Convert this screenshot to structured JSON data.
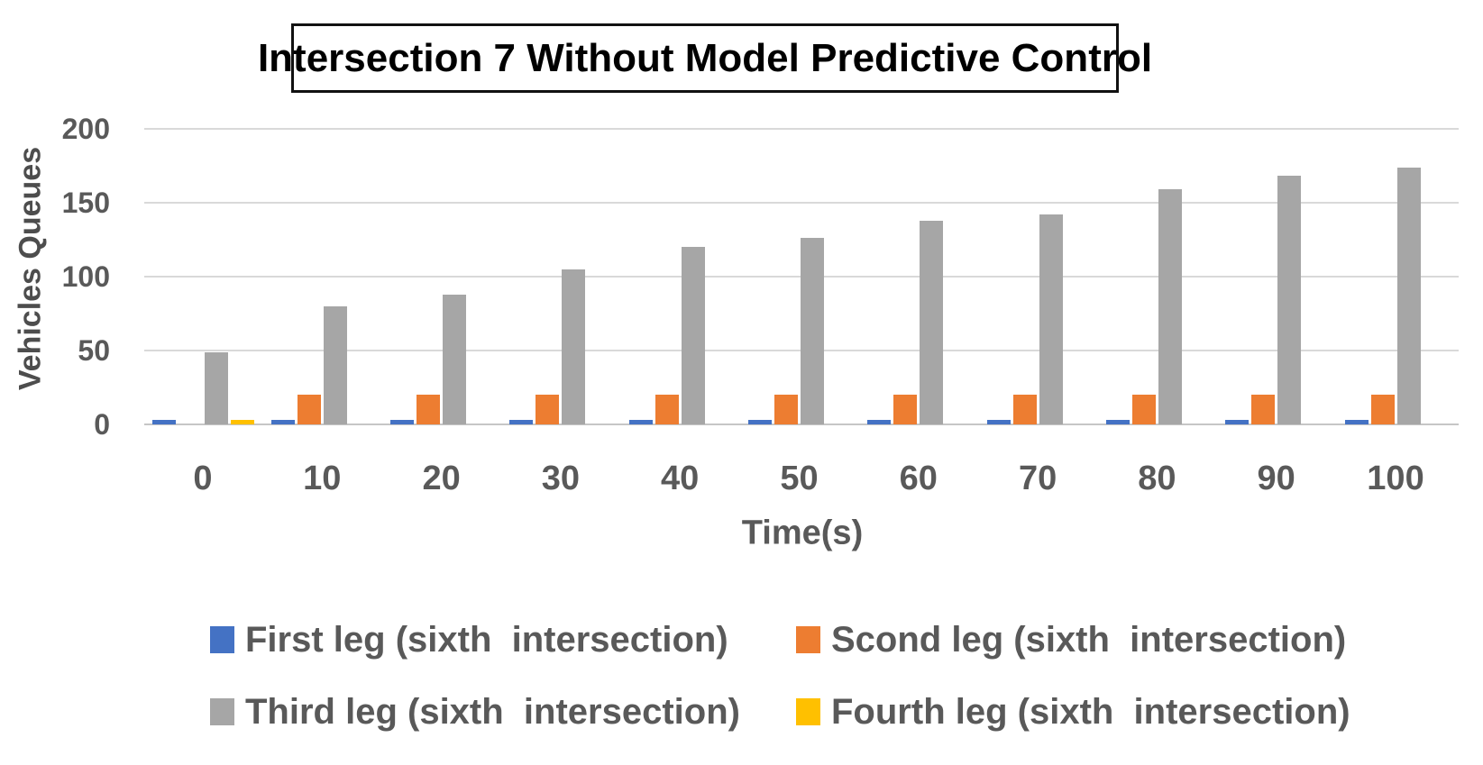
{
  "title": "Intersection 7 Without Model Predictive Control",
  "chart_data": {
    "type": "bar",
    "title": "Intersection 7 Without Model Predictive Control",
    "xlabel": "Time(s)",
    "ylabel": "Vehicles Queues",
    "categories": [
      "0",
      "10",
      "20",
      "30",
      "40",
      "50",
      "60",
      "70",
      "80",
      "90",
      "100"
    ],
    "ylim": [
      0,
      200
    ],
    "yticks": [
      0,
      50,
      100,
      150,
      200
    ],
    "grid": true,
    "legend_position": "bottom",
    "series": [
      {
        "name": "First leg (sixth  intersection)",
        "color": "#4472C4",
        "values": [
          3,
          3,
          3,
          3,
          3,
          3,
          3,
          3,
          3,
          3,
          3
        ]
      },
      {
        "name": "Scond leg (sixth  intersection)",
        "color": "#ED7D31",
        "values": [
          0,
          20,
          20,
          20,
          20,
          20,
          20,
          20,
          20,
          20,
          20
        ]
      },
      {
        "name": "Third leg (sixth  intersection)",
        "color": "#A6A6A6",
        "values": [
          49,
          80,
          88,
          105,
          120,
          126,
          138,
          142,
          159,
          168,
          174
        ]
      },
      {
        "name": "Fourth leg (sixth  intersection)",
        "color": "#FFC000",
        "values": [
          3,
          0,
          0,
          0,
          0,
          0,
          0,
          0,
          0,
          0,
          0
        ]
      }
    ]
  },
  "colors": {
    "gridline": "#d9d9d9",
    "axis_line": "#c6c6c6",
    "tick_text": "#595959",
    "title_text": "#000000"
  }
}
